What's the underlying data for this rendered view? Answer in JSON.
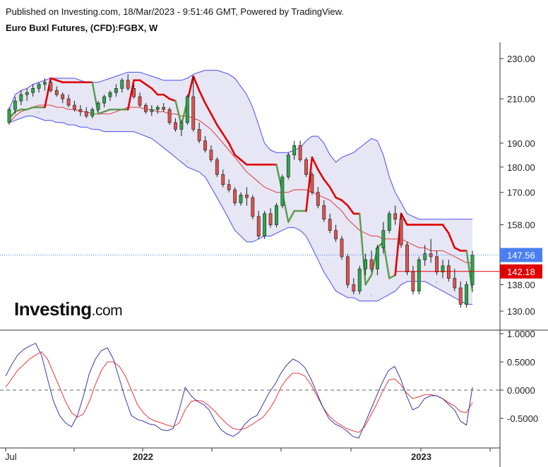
{
  "header": {
    "published": "Published on Investing.com, 18/Mar/2023 - 9:51:46 GMT, Powered by TradingView.",
    "title": "Euro Buxl Futures, (CFD):FGBX, W"
  },
  "logo": {
    "main": "Investing",
    "tld": ".com"
  },
  "colors": {
    "up": "#2aa84a",
    "down": "#e0534e",
    "band_fill": "#e6e6f4",
    "band_line": "#4c4cf0",
    "mid_line": "#e02828",
    "stop_red": "#e00000",
    "stop_green": "#5a9a48",
    "osc_main": "#3a3aa8",
    "osc_signal": "#e83a3a",
    "last_tag": "#4a7ff0",
    "level_tag": "#e00000"
  },
  "chart_data": [
    {
      "type": "candlestick",
      "title": "Euro Buxl Futures, (CFD):FGBX, W",
      "price_axis": {
        "ticks": [
          "230.00",
          "210.00",
          "190.00",
          "180.00",
          "170.00",
          "158.00",
          "138.00",
          "130.00"
        ],
        "tick_values": [
          230,
          210,
          190,
          180,
          170,
          158,
          138,
          130
        ],
        "scale": "log"
      },
      "time_axis": {
        "labels": [
          "Jul",
          "2022",
          "2023"
        ]
      },
      "last_price_tag": "147.56",
      "level_tag": "142.18",
      "last_price": 147.56,
      "level_price": 142.18,
      "candles": [
        [
          199,
          206,
          198,
          205
        ],
        [
          205,
          211,
          203,
          209
        ],
        [
          209,
          214,
          207,
          212
        ],
        [
          212,
          215,
          209,
          213
        ],
        [
          213,
          217,
          211,
          215
        ],
        [
          215,
          218,
          213,
          217
        ],
        [
          217,
          220,
          214,
          218
        ],
        [
          218,
          219,
          213,
          214
        ],
        [
          214,
          216,
          211,
          212
        ],
        [
          212,
          213,
          208,
          210
        ],
        [
          210,
          212,
          206,
          207
        ],
        [
          207,
          209,
          204,
          205
        ],
        [
          205,
          207,
          202,
          204
        ],
        [
          204,
          206,
          201,
          202
        ],
        [
          202,
          206,
          201,
          205
        ],
        [
          205,
          209,
          204,
          208
        ],
        [
          208,
          212,
          206,
          211
        ],
        [
          211,
          214,
          209,
          213
        ],
        [
          213,
          217,
          211,
          215
        ],
        [
          215,
          220,
          213,
          219
        ],
        [
          219,
          222,
          214,
          215
        ],
        [
          215,
          217,
          210,
          211
        ],
        [
          211,
          213,
          206,
          207
        ],
        [
          207,
          208,
          203,
          204
        ],
        [
          204,
          207,
          202,
          205
        ],
        [
          205,
          207,
          203,
          206
        ],
        [
          206,
          208,
          204,
          205
        ],
        [
          205,
          206,
          198,
          199
        ],
        [
          199,
          201,
          195,
          196
        ],
        [
          196,
          200,
          193,
          199
        ],
        [
          199,
          212,
          198,
          211
        ],
        [
          211,
          221,
          195,
          196
        ],
        [
          196,
          199,
          190,
          191
        ],
        [
          191,
          193,
          186,
          187
        ],
        [
          187,
          189,
          182,
          183
        ],
        [
          183,
          184,
          176,
          177
        ],
        [
          177,
          179,
          172,
          173
        ],
        [
          173,
          175,
          170,
          171
        ],
        [
          171,
          172,
          165,
          166
        ],
        [
          166,
          170,
          165,
          169
        ],
        [
          169,
          172,
          165,
          168
        ],
        [
          168,
          169,
          160,
          161
        ],
        [
          161,
          163,
          153,
          154
        ],
        [
          154,
          163,
          153,
          162
        ],
        [
          162,
          164,
          157,
          158
        ],
        [
          158,
          166,
          157,
          165
        ],
        [
          165,
          177,
          164,
          176
        ],
        [
          176,
          186,
          175,
          185
        ],
        [
          185,
          191,
          183,
          189
        ],
        [
          189,
          191,
          182,
          183
        ],
        [
          183,
          184,
          176,
          177
        ],
        [
          177,
          178,
          169,
          170
        ],
        [
          170,
          172,
          164,
          165
        ],
        [
          165,
          167,
          159,
          160
        ],
        [
          160,
          162,
          155,
          156
        ],
        [
          156,
          158,
          152,
          153
        ],
        [
          153,
          154,
          146,
          147
        ],
        [
          147,
          148,
          137,
          138
        ],
        [
          138,
          140,
          135,
          136
        ],
        [
          136,
          144,
          135,
          143
        ],
        [
          143,
          148,
          141,
          146
        ],
        [
          146,
          149,
          142,
          143
        ],
        [
          143,
          151,
          141,
          150
        ],
        [
          150,
          159,
          148,
          156
        ],
        [
          156,
          163,
          155,
          162
        ],
        [
          162,
          165,
          158,
          160
        ],
        [
          160,
          162,
          150,
          151
        ],
        [
          151,
          152,
          141,
          142
        ],
        [
          142,
          144,
          135,
          136
        ],
        [
          136,
          147,
          135,
          146
        ],
        [
          146,
          151,
          144,
          148
        ],
        [
          148,
          153,
          145,
          147
        ],
        [
          147,
          149,
          141,
          142
        ],
        [
          142,
          146,
          140,
          144
        ],
        [
          144,
          146,
          139,
          140
        ],
        [
          140,
          143,
          136,
          137
        ],
        [
          137,
          139,
          131,
          132
        ],
        [
          132,
          139,
          131,
          138
        ],
        [
          138,
          149,
          137,
          147.56
        ]
      ],
      "bollinger": {
        "upper": [
          205,
          212,
          214,
          215,
          217,
          218,
          219,
          220,
          220,
          220,
          220,
          220,
          219,
          218,
          218,
          218,
          219,
          220,
          221,
          222,
          223,
          223,
          223,
          222,
          221,
          220,
          219,
          219,
          219,
          219,
          220,
          222,
          223,
          224,
          224,
          224,
          223,
          222,
          220,
          216,
          212,
          206,
          198,
          190,
          187,
          186,
          186,
          186,
          187,
          188,
          191,
          193,
          193,
          190,
          185,
          182,
          184,
          185,
          186,
          188,
          190,
          192,
          191,
          185,
          176,
          170,
          166,
          162,
          161,
          160,
          160,
          160,
          160,
          160,
          160,
          160,
          160,
          160,
          160
        ],
        "middle": [
          199,
          202,
          204,
          205,
          206,
          207,
          207,
          207,
          206,
          206,
          205,
          205,
          204,
          204,
          203,
          203,
          203,
          203,
          204,
          205,
          206,
          206,
          206,
          205,
          205,
          204,
          204,
          203,
          203,
          202,
          202,
          201,
          200,
          198,
          196,
          193,
          190,
          187,
          184,
          181,
          178,
          176,
          174,
          172,
          171,
          170,
          170,
          170,
          171,
          171,
          171,
          170,
          169,
          168,
          167,
          165,
          163,
          160,
          158,
          156,
          155,
          154,
          154,
          153,
          153,
          153,
          153,
          152,
          151,
          150,
          150,
          149,
          149,
          149,
          148,
          147,
          146,
          145,
          145
        ],
        "lower": [
          199,
          200,
          201,
          202,
          202,
          201,
          200,
          200,
          199,
          199,
          198,
          198,
          197,
          197,
          196,
          196,
          195,
          195,
          195,
          195,
          195,
          195,
          194,
          193,
          192,
          190,
          188,
          186,
          184,
          182,
          180,
          179,
          178,
          176,
          172,
          168,
          164,
          160,
          156,
          154,
          152,
          152,
          153,
          154,
          154,
          155,
          156,
          157,
          157,
          156,
          154,
          150,
          146,
          142,
          139,
          136,
          135,
          134,
          134,
          133,
          133,
          133,
          133,
          134,
          135,
          136,
          138,
          139,
          139,
          139,
          139,
          138,
          137,
          136,
          135,
          134,
          133,
          132,
          132
        ]
      },
      "stop_line": [
        [
          "g",
          201
        ],
        [
          "g",
          204
        ],
        [
          "g",
          205
        ],
        [
          "g",
          205
        ],
        [
          "g",
          206
        ],
        [
          "g",
          206
        ],
        [
          "g",
          206
        ],
        [
          "r",
          220
        ],
        [
          "r",
          219
        ],
        [
          "r",
          218
        ],
        [
          "r",
          218
        ],
        [
          "r",
          218
        ],
        [
          "r",
          218
        ],
        [
          "r",
          218
        ],
        [
          "r",
          218
        ],
        [
          "g",
          203
        ],
        [
          "g",
          204
        ],
        [
          "g",
          205
        ],
        [
          "g",
          205
        ],
        [
          "g",
          205
        ],
        [
          "g",
          205
        ],
        [
          "r",
          219
        ],
        [
          "r",
          219
        ],
        [
          "r",
          217
        ],
        [
          "r",
          215
        ],
        [
          "r",
          212
        ],
        [
          "r",
          212
        ],
        [
          "r",
          210
        ],
        [
          "r",
          209
        ],
        [
          "g",
          198
        ],
        [
          "g",
          209
        ],
        [
          "r",
          221
        ],
        [
          "r",
          214
        ],
        [
          "r",
          208
        ],
        [
          "r",
          203
        ],
        [
          "r",
          198
        ],
        [
          "r",
          194
        ],
        [
          "r",
          190
        ],
        [
          "r",
          185
        ],
        [
          "r",
          183
        ],
        [
          "r",
          181
        ],
        [
          "r",
          181
        ],
        [
          "r",
          181
        ],
        [
          "r",
          181
        ],
        [
          "r",
          181
        ],
        [
          "r",
          181
        ],
        [
          "g",
          170
        ],
        [
          "g",
          159
        ],
        [
          "g",
          163
        ],
        [
          "g",
          163
        ],
        [
          "g",
          163
        ],
        [
          "r",
          184
        ],
        [
          "r",
          179
        ],
        [
          "r",
          175
        ],
        [
          "r",
          172
        ],
        [
          "r",
          168
        ],
        [
          "r",
          167
        ],
        [
          "r",
          165
        ],
        [
          "r",
          162
        ],
        [
          "r",
          162
        ],
        [
          "g",
          138
        ],
        [
          "g",
          141
        ],
        [
          "g",
          150
        ],
        [
          "g",
          152
        ],
        [
          "g",
          140
        ],
        [
          "g",
          141
        ],
        [
          "r",
          162
        ],
        [
          "r",
          158
        ],
        [
          "r",
          158
        ],
        [
          "r",
          158
        ],
        [
          "r",
          158
        ],
        [
          "r",
          158
        ],
        [
          "r",
          158
        ],
        [
          "r",
          158
        ],
        [
          "r",
          155
        ],
        [
          "r",
          150
        ],
        [
          "r",
          149
        ],
        [
          "r",
          149
        ],
        [
          "g",
          136
        ]
      ],
      "stop_markers": [
        5,
        30,
        47,
        61,
        72
      ]
    },
    {
      "type": "line",
      "title": "",
      "y_axis": {
        "ticks": [
          "1.0000",
          "0.5000",
          "0.0000",
          "-0.5000"
        ],
        "tick_values": [
          1,
          0.5,
          0,
          -0.5
        ],
        "range": [
          -0.95,
          1.0
        ]
      },
      "zero_line": 0,
      "series": [
        {
          "values": [
            0.25,
            0.45,
            0.62,
            0.72,
            0.78,
            0.83,
            0.62,
            0.2,
            -0.2,
            -0.45,
            -0.58,
            -0.65,
            -0.45,
            -0.1,
            0.3,
            0.55,
            0.7,
            0.75,
            0.55,
            0.2,
            -0.15,
            -0.45,
            -0.52,
            -0.55,
            -0.6,
            -0.62,
            -0.7,
            -0.72,
            -0.68,
            -0.35,
            0.05,
            -0.1,
            -0.2,
            -0.25,
            -0.35,
            -0.55,
            -0.7,
            -0.78,
            -0.82,
            -0.75,
            -0.6,
            -0.5,
            -0.45,
            -0.25,
            -0.05,
            0.1,
            0.3,
            0.45,
            0.55,
            0.5,
            0.4,
            0.2,
            -0.05,
            -0.3,
            -0.5,
            -0.6,
            -0.65,
            -0.72,
            -0.82,
            -0.85,
            -0.6,
            -0.35,
            -0.1,
            0.15,
            0.35,
            0.42,
            0.2,
            -0.1,
            -0.35,
            -0.3,
            -0.15,
            -0.1,
            -0.1,
            -0.15,
            -0.25,
            -0.35,
            -0.55,
            -0.62,
            0.05
          ]
        },
        {
          "values": [
            0.05,
            0.2,
            0.35,
            0.45,
            0.55,
            0.62,
            0.68,
            0.55,
            0.3,
            0.05,
            -0.2,
            -0.4,
            -0.48,
            -0.42,
            -0.2,
            0.1,
            0.35,
            0.5,
            0.5,
            0.42,
            0.25,
            0.0,
            -0.25,
            -0.4,
            -0.5,
            -0.55,
            -0.58,
            -0.62,
            -0.65,
            -0.58,
            -0.35,
            -0.2,
            -0.18,
            -0.2,
            -0.28,
            -0.38,
            -0.5,
            -0.6,
            -0.68,
            -0.7,
            -0.68,
            -0.62,
            -0.55,
            -0.48,
            -0.35,
            -0.18,
            0.05,
            0.2,
            0.3,
            0.3,
            0.25,
            0.1,
            -0.1,
            -0.3,
            -0.45,
            -0.55,
            -0.62,
            -0.68,
            -0.72,
            -0.75,
            -0.65,
            -0.45,
            -0.25,
            -0.02,
            0.18,
            0.2,
            0.1,
            -0.05,
            -0.15,
            -0.12,
            -0.08,
            -0.08,
            -0.1,
            -0.15,
            -0.22,
            -0.28,
            -0.38,
            -0.4,
            -0.22
          ]
        }
      ]
    }
  ]
}
